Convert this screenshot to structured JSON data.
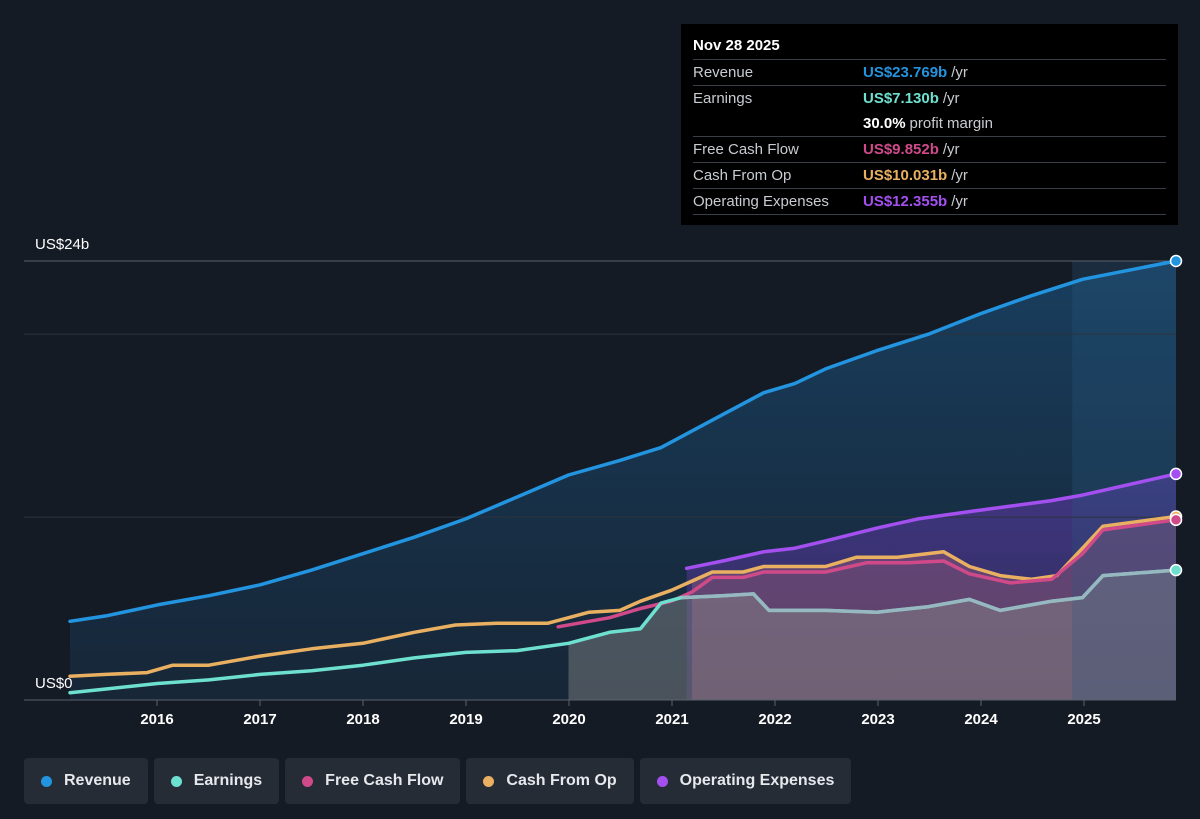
{
  "tooltip": {
    "date": "Nov 28 2025",
    "revenue_label": "Revenue",
    "revenue_value": "US$23.769b",
    "earnings_label": "Earnings",
    "earnings_value": "US$7.130b",
    "margin_value": "30.0%",
    "margin_text": "profit margin",
    "fcf_label": "Free Cash Flow",
    "fcf_value": "US$9.852b",
    "cfo_label": "Cash From Op",
    "cfo_value": "US$10.031b",
    "opex_label": "Operating Expenses",
    "opex_value": "US$12.355b",
    "unit": "/yr"
  },
  "legend": {
    "revenue": "Revenue",
    "earnings": "Earnings",
    "fcf": "Free Cash Flow",
    "cfo": "Cash From Op",
    "opex": "Operating Expenses"
  },
  "colors": {
    "revenue": "#2394e0",
    "earnings": "#6ee0d0",
    "fcf": "#d04a8a",
    "cfo": "#eab062",
    "opex": "#a450f0"
  },
  "chart_data": {
    "type": "area",
    "y_top_label": "US$24b",
    "y_bottom_label": "US$0",
    "ylim": [
      0,
      24
    ],
    "xlim": [
      2015.15,
      2025.91
    ],
    "x_ticks": [
      "2016",
      "2017",
      "2018",
      "2019",
      "2020",
      "2021",
      "2022",
      "2023",
      "2024",
      "2025"
    ],
    "forecast_region_start": 2024.9,
    "series": [
      {
        "name": "Revenue",
        "key": "revenue",
        "points": [
          [
            2015.15,
            4.3
          ],
          [
            2015.5,
            4.6
          ],
          [
            2016.0,
            5.2
          ],
          [
            2016.5,
            5.7
          ],
          [
            2017.0,
            6.3
          ],
          [
            2017.5,
            7.1
          ],
          [
            2018.0,
            8.0
          ],
          [
            2018.5,
            8.9
          ],
          [
            2019.0,
            9.9
          ],
          [
            2019.5,
            11.1
          ],
          [
            2020.0,
            12.3
          ],
          [
            2020.5,
            13.1
          ],
          [
            2020.9,
            13.8
          ],
          [
            2021.0,
            14.1
          ],
          [
            2021.5,
            15.6
          ],
          [
            2021.9,
            16.8
          ],
          [
            2022.2,
            17.3
          ],
          [
            2022.5,
            18.1
          ],
          [
            2023.0,
            19.1
          ],
          [
            2023.5,
            20.0
          ],
          [
            2024.0,
            21.1
          ],
          [
            2024.5,
            22.1
          ],
          [
            2025.0,
            23.0
          ],
          [
            2025.91,
            24.0
          ]
        ]
      },
      {
        "name": "Earnings",
        "key": "earnings",
        "points": [
          [
            2015.15,
            0.4
          ],
          [
            2015.5,
            0.6
          ],
          [
            2016.0,
            0.9
          ],
          [
            2016.5,
            1.1
          ],
          [
            2017.0,
            1.4
          ],
          [
            2017.5,
            1.6
          ],
          [
            2018.0,
            1.9
          ],
          [
            2018.5,
            2.3
          ],
          [
            2019.0,
            2.6
          ],
          [
            2019.5,
            2.7
          ],
          [
            2020.0,
            3.1
          ],
          [
            2020.4,
            3.7
          ],
          [
            2020.7,
            3.9
          ],
          [
            2020.9,
            5.3
          ],
          [
            2021.1,
            5.6
          ],
          [
            2021.5,
            5.7
          ],
          [
            2021.8,
            5.8
          ],
          [
            2021.95,
            4.9
          ],
          [
            2022.5,
            4.9
          ],
          [
            2023.0,
            4.8
          ],
          [
            2023.5,
            5.1
          ],
          [
            2023.9,
            5.5
          ],
          [
            2024.2,
            4.9
          ],
          [
            2024.7,
            5.4
          ],
          [
            2025.0,
            5.6
          ],
          [
            2025.2,
            6.8
          ],
          [
            2025.91,
            7.1
          ]
        ]
      },
      {
        "name": "Free Cash Flow",
        "key": "fcf",
        "points": [
          [
            2019.9,
            4.0
          ],
          [
            2020.4,
            4.5
          ],
          [
            2020.7,
            5.0
          ],
          [
            2021.0,
            5.4
          ],
          [
            2021.2,
            5.9
          ],
          [
            2021.4,
            6.7
          ],
          [
            2021.7,
            6.7
          ],
          [
            2021.9,
            7.0
          ],
          [
            2022.5,
            7.0
          ],
          [
            2022.9,
            7.5
          ],
          [
            2023.3,
            7.5
          ],
          [
            2023.65,
            7.6
          ],
          [
            2023.9,
            6.9
          ],
          [
            2024.3,
            6.4
          ],
          [
            2024.7,
            6.6
          ],
          [
            2025.0,
            8.0
          ],
          [
            2025.2,
            9.3
          ],
          [
            2025.91,
            9.85
          ]
        ]
      },
      {
        "name": "Cash From Op",
        "key": "cfo",
        "points": [
          [
            2015.15,
            1.3
          ],
          [
            2015.5,
            1.4
          ],
          [
            2015.9,
            1.5
          ],
          [
            2016.15,
            1.9
          ],
          [
            2016.5,
            1.9
          ],
          [
            2017.0,
            2.4
          ],
          [
            2017.5,
            2.8
          ],
          [
            2018.0,
            3.1
          ],
          [
            2018.5,
            3.7
          ],
          [
            2018.9,
            4.1
          ],
          [
            2019.3,
            4.2
          ],
          [
            2019.8,
            4.2
          ],
          [
            2020.2,
            4.8
          ],
          [
            2020.5,
            4.9
          ],
          [
            2020.7,
            5.4
          ],
          [
            2021.0,
            6.0
          ],
          [
            2021.2,
            6.5
          ],
          [
            2021.4,
            7.0
          ],
          [
            2021.7,
            7.0
          ],
          [
            2021.9,
            7.3
          ],
          [
            2022.5,
            7.3
          ],
          [
            2022.8,
            7.8
          ],
          [
            2023.2,
            7.8
          ],
          [
            2023.65,
            8.1
          ],
          [
            2023.9,
            7.3
          ],
          [
            2024.2,
            6.8
          ],
          [
            2024.5,
            6.6
          ],
          [
            2024.75,
            6.8
          ],
          [
            2025.0,
            8.3
          ],
          [
            2025.2,
            9.5
          ],
          [
            2025.91,
            10.03
          ]
        ]
      },
      {
        "name": "Operating Expenses",
        "key": "opex",
        "points": [
          [
            2021.15,
            7.2
          ],
          [
            2021.5,
            7.6
          ],
          [
            2021.9,
            8.1
          ],
          [
            2022.2,
            8.3
          ],
          [
            2022.5,
            8.7
          ],
          [
            2023.0,
            9.4
          ],
          [
            2023.4,
            9.9
          ],
          [
            2023.9,
            10.3
          ],
          [
            2024.3,
            10.6
          ],
          [
            2024.7,
            10.9
          ],
          [
            2025.0,
            11.2
          ],
          [
            2025.91,
            12.36
          ]
        ]
      }
    ]
  }
}
